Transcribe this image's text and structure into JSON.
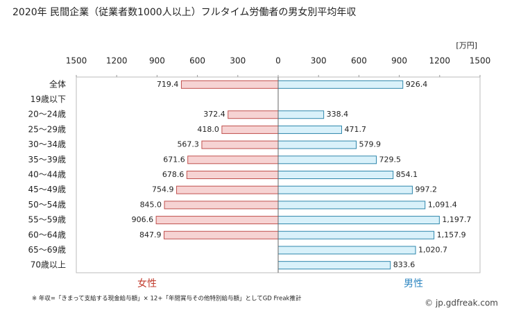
{
  "chart_data": {
    "type": "butterfly",
    "title": "2020年 民間企業（従業者数1000人以上）フルタイム労働者の男女別平均年収",
    "unit": "[万円]",
    "categories": [
      "全体",
      "19歳以下",
      "20～24歳",
      "25～29歳",
      "30～34歳",
      "35～39歳",
      "40～44歳",
      "45～49歳",
      "50～54歳",
      "55～59歳",
      "60～64歳",
      "65～69歳",
      "70歳以上"
    ],
    "series": [
      {
        "name": "女性",
        "side": "left",
        "color": "#f6d3d3",
        "edge": "#c0504d",
        "label_color": "#c0392b",
        "values": [
          719.4,
          null,
          372.4,
          418.0,
          567.3,
          671.6,
          678.6,
          754.9,
          845.0,
          906.6,
          847.9,
          null,
          null
        ],
        "value_labels": [
          "719.4",
          null,
          "372.4",
          "418.0",
          "567.3",
          "671.6",
          "678.6",
          "754.9",
          "845.0",
          "906.6",
          "847.9",
          null,
          null
        ]
      },
      {
        "name": "男性",
        "side": "right",
        "color": "#d9f1fa",
        "edge": "#2e86ab",
        "label_color": "#2e86c1",
        "values": [
          926.4,
          null,
          338.4,
          471.7,
          579.9,
          729.5,
          854.1,
          997.2,
          1091.4,
          1197.7,
          1157.9,
          1020.7,
          833.6
        ],
        "value_labels": [
          "926.4",
          null,
          "338.4",
          "471.7",
          "579.9",
          "729.5",
          "854.1",
          "997.2",
          "1,091.4",
          "1,197.7",
          "1,157.9",
          "1,020.7",
          "833.6"
        ]
      }
    ],
    "xlim": [
      -1500,
      1500
    ],
    "xticks": [
      {
        "value": -1500,
        "label": "1500"
      },
      {
        "value": -1200,
        "label": "1200"
      },
      {
        "value": -900,
        "label": "900"
      },
      {
        "value": -600,
        "label": "600"
      },
      {
        "value": -300,
        "label": "300"
      },
      0,
      300,
      600,
      900,
      1200,
      1500
    ],
    "footnote": "※ 年収=「きまって支給する現金給与額」× 12+「年間賞与その他特別給与額」としてGD Freak推計",
    "source": "© jp.gdfreak.com"
  }
}
